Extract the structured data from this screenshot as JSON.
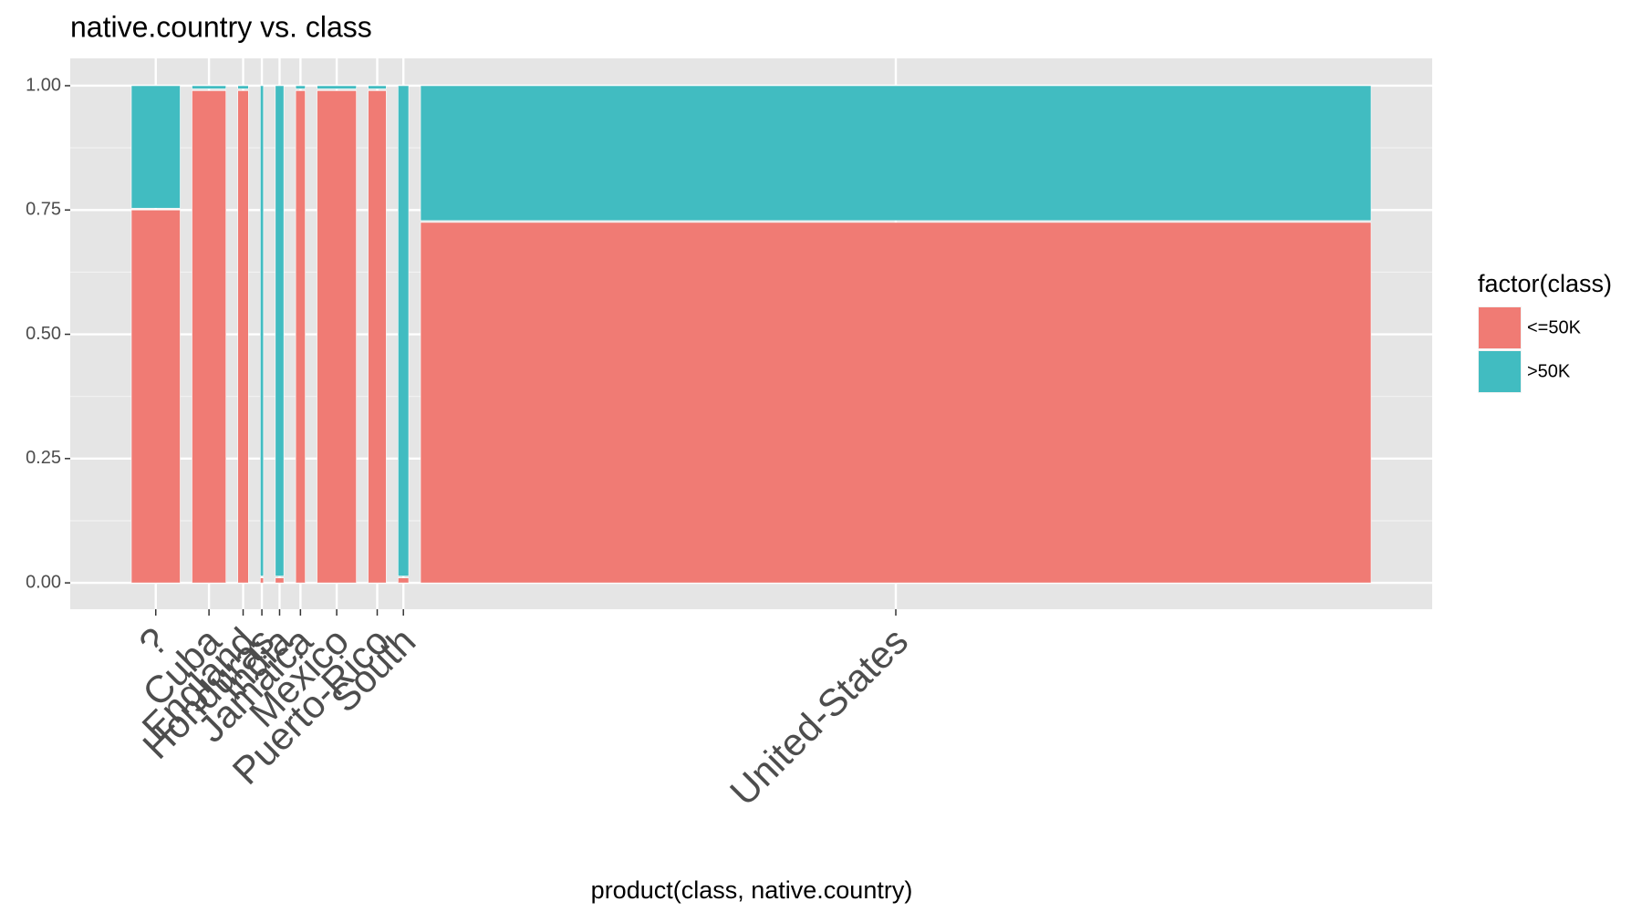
{
  "chart_data": {
    "type": "mosaic",
    "title": "native.country vs. class",
    "x_label": "product(class, native.country)",
    "legend_title": "factor(class)",
    "categories": [
      "?",
      "Cuba",
      "England",
      "Honduras",
      "India",
      "Jamaica",
      "Mexico",
      "Puerto-Rico",
      "South",
      "United-States"
    ],
    "widths": [
      46,
      32,
      10,
      3,
      8,
      9,
      37,
      17,
      10,
      896
    ],
    "series": [
      {
        "name": "<=50K",
        "color": "#f07b74",
        "values": [
          0.75,
          0.99,
          0.99,
          0.01,
          0.01,
          0.99,
          0.99,
          0.99,
          0.01,
          0.725
        ]
      },
      {
        "name": ">50K",
        "color": "#41bcc1",
        "values": [
          0.25,
          0.01,
          0.01,
          0.99,
          0.99,
          0.01,
          0.01,
          0.01,
          0.99,
          0.275
        ]
      }
    ],
    "ylim": [
      -0.053,
      1.055
    ],
    "yticks": [
      {
        "value": 0,
        "label": "0.00"
      },
      {
        "value": 0.25,
        "label": "0.25"
      },
      {
        "value": 0.5,
        "label": "0.50"
      },
      {
        "value": 0.75,
        "label": "0.75"
      },
      {
        "value": 1,
        "label": "1.00"
      }
    ],
    "grid": true,
    "legend": "right"
  }
}
